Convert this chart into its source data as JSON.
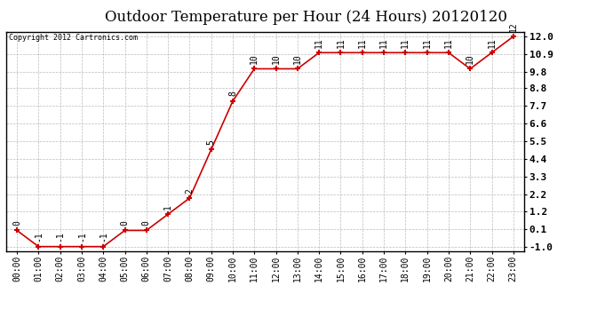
{
  "title": "Outdoor Temperature per Hour (24 Hours) 20120120",
  "copyright": "Copyright 2012 Cartronics.com",
  "hours": [
    "00:00",
    "01:00",
    "02:00",
    "03:00",
    "04:00",
    "05:00",
    "06:00",
    "07:00",
    "08:00",
    "09:00",
    "10:00",
    "11:00",
    "12:00",
    "13:00",
    "14:00",
    "15:00",
    "16:00",
    "17:00",
    "18:00",
    "19:00",
    "20:00",
    "21:00",
    "22:00",
    "23:00"
  ],
  "temperatures": [
    0,
    -1,
    -1,
    -1,
    -1,
    0,
    0,
    1,
    2,
    5,
    8,
    10,
    10,
    10,
    11,
    11,
    11,
    11,
    11,
    11,
    11,
    10,
    11,
    12
  ],
  "ylim_min": -1.3,
  "ylim_max": 12.3,
  "yticks": [
    -1.0,
    0.1,
    1.2,
    2.2,
    3.3,
    4.4,
    5.5,
    6.6,
    7.7,
    8.8,
    9.8,
    10.9,
    12.0
  ],
  "ytick_labels": [
    "-1.0",
    "0.1",
    "1.2",
    "2.2",
    "3.3",
    "4.4",
    "5.5",
    "6.6",
    "7.7",
    "8.8",
    "9.8",
    "10.9",
    "12.0"
  ],
  "line_color": "#cc0000",
  "bg_color": "#ffffff",
  "grid_color": "#bbbbbb",
  "title_fontsize": 12,
  "copyright_fontsize": 6,
  "label_fontsize": 7,
  "annot_fontsize": 7
}
